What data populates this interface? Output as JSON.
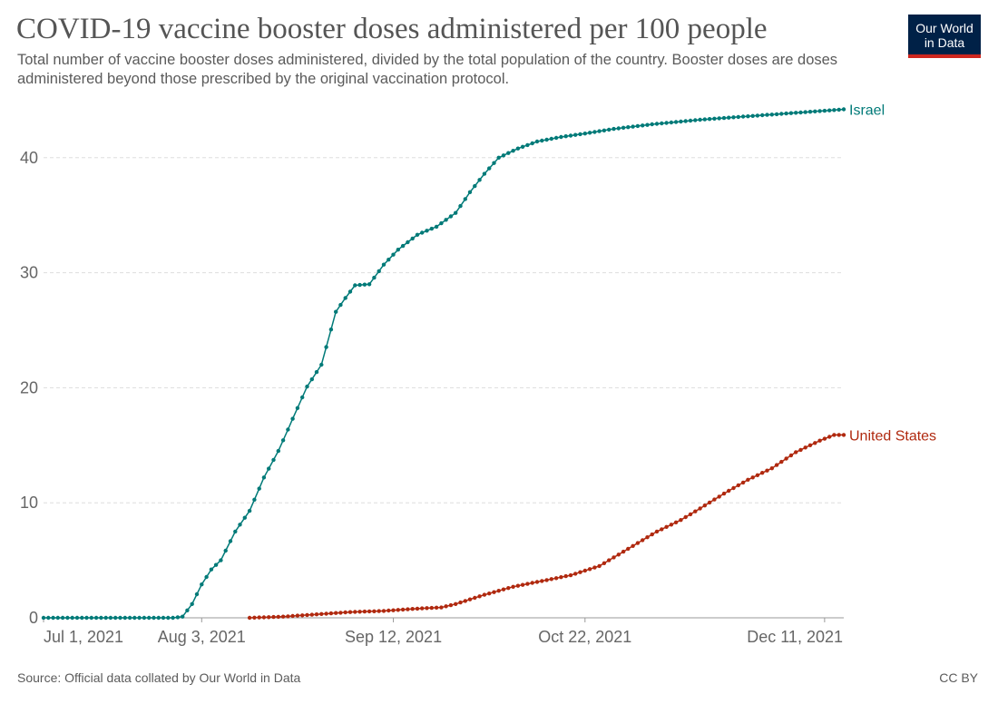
{
  "header": {
    "title": "COVID-19 vaccine booster doses administered per 100 people",
    "subtitle": "Total number of vaccine booster doses administered, divided by the total population of the country. Booster doses are doses administered beyond those prescribed by the original vaccination protocol.",
    "logo_line1": "Our World",
    "logo_line2": "in Data"
  },
  "footer": {
    "source": "Source: Official data collated by Our World in Data",
    "license": "CC BY"
  },
  "colors": {
    "israel": "#007a78",
    "united_states": "#b0290f",
    "logo_bg": "#002147",
    "logo_accent": "#ce261e"
  },
  "chart_data": {
    "type": "line",
    "title": "COVID-19 vaccine booster doses administered per 100 people",
    "xlabel": "",
    "ylabel": "",
    "x_range": [
      "2021-07-01",
      "2021-12-15"
    ],
    "ylim": [
      0,
      45
    ],
    "y_ticks": [
      0,
      10,
      20,
      30,
      40
    ],
    "x_ticks": [
      {
        "date": "2021-07-01",
        "label": "Jul 1, 2021"
      },
      {
        "date": "2021-08-03",
        "label": "Aug 3, 2021"
      },
      {
        "date": "2021-09-12",
        "label": "Sep 12, 2021"
      },
      {
        "date": "2021-10-22",
        "label": "Oct 22, 2021"
      },
      {
        "date": "2021-12-11",
        "label": "Dec 11, 2021"
      }
    ],
    "grid": "horizontal dashed",
    "legend": "inline labels at line ends",
    "series": [
      {
        "name": "Israel",
        "color": "#007a78",
        "points": [
          [
            "2021-07-01",
            0
          ],
          [
            "2021-07-28",
            0
          ],
          [
            "2021-07-30",
            0.1
          ],
          [
            "2021-08-01",
            1.2
          ],
          [
            "2021-08-03",
            2.9
          ],
          [
            "2021-08-05",
            4.2
          ],
          [
            "2021-08-07",
            5.0
          ],
          [
            "2021-08-10",
            7.5
          ],
          [
            "2021-08-13",
            9.3
          ],
          [
            "2021-08-16",
            12.2
          ],
          [
            "2021-08-19",
            14.5
          ],
          [
            "2021-08-22",
            17.3
          ],
          [
            "2021-08-25",
            20.1
          ],
          [
            "2021-08-28",
            22.0
          ],
          [
            "2021-08-31",
            26.6
          ],
          [
            "2021-09-02",
            27.8
          ],
          [
            "2021-09-04",
            28.9
          ],
          [
            "2021-09-07",
            29.0
          ],
          [
            "2021-09-10",
            30.7
          ],
          [
            "2021-09-13",
            32.0
          ],
          [
            "2021-09-17",
            33.3
          ],
          [
            "2021-09-21",
            34.0
          ],
          [
            "2021-09-25",
            35.2
          ],
          [
            "2021-09-28",
            37.0
          ],
          [
            "2021-10-01",
            38.6
          ],
          [
            "2021-10-04",
            40.0
          ],
          [
            "2021-10-08",
            40.8
          ],
          [
            "2021-10-12",
            41.4
          ],
          [
            "2021-10-17",
            41.8
          ],
          [
            "2021-10-22",
            42.1
          ],
          [
            "2021-10-28",
            42.5
          ],
          [
            "2021-11-05",
            42.9
          ],
          [
            "2021-11-15",
            43.3
          ],
          [
            "2021-11-25",
            43.6
          ],
          [
            "2021-12-05",
            43.9
          ],
          [
            "2021-12-15",
            44.2
          ]
        ]
      },
      {
        "name": "United States",
        "color": "#b0290f",
        "points": [
          [
            "2021-08-13",
            0
          ],
          [
            "2021-08-20",
            0.1
          ],
          [
            "2021-08-27",
            0.3
          ],
          [
            "2021-09-03",
            0.5
          ],
          [
            "2021-09-10",
            0.6
          ],
          [
            "2021-09-17",
            0.8
          ],
          [
            "2021-09-22",
            0.9
          ],
          [
            "2021-09-25",
            1.2
          ],
          [
            "2021-09-28",
            1.6
          ],
          [
            "2021-10-01",
            2.0
          ],
          [
            "2021-10-07",
            2.7
          ],
          [
            "2021-10-13",
            3.2
          ],
          [
            "2021-10-19",
            3.7
          ],
          [
            "2021-10-25",
            4.5
          ],
          [
            "2021-10-29",
            5.5
          ],
          [
            "2021-11-02",
            6.5
          ],
          [
            "2021-11-06",
            7.5
          ],
          [
            "2021-11-11",
            8.5
          ],
          [
            "2021-11-15",
            9.5
          ],
          [
            "2021-11-20",
            10.8
          ],
          [
            "2021-11-25",
            12.0
          ],
          [
            "2021-11-30",
            13.0
          ],
          [
            "2021-12-05",
            14.4
          ],
          [
            "2021-12-10",
            15.4
          ],
          [
            "2021-12-13",
            15.9
          ],
          [
            "2021-12-15",
            15.9
          ]
        ]
      }
    ]
  }
}
